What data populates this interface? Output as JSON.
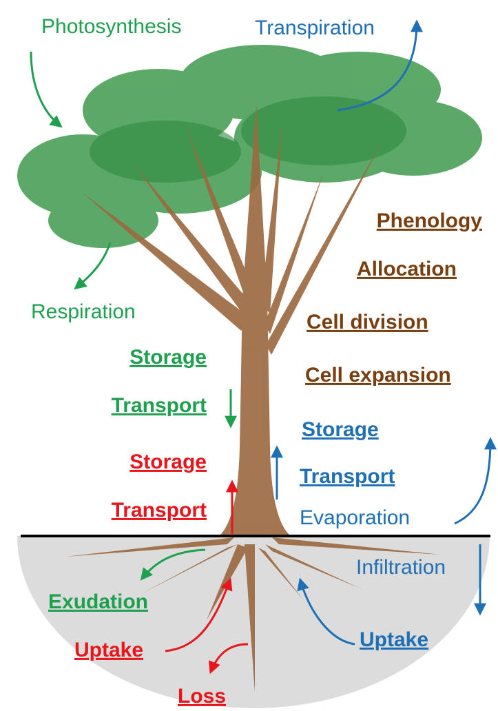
{
  "canopy": {
    "photosynthesis": "Photosynthesis",
    "transpiration": "Transpiration",
    "respiration": "Respiration"
  },
  "growth": {
    "phenology": "Phenology",
    "allocation": "Allocation",
    "cell_division": "Cell division",
    "cell_expansion": "Cell expansion"
  },
  "carbon": {
    "storage": "Storage",
    "transport": "Transport",
    "exudation": "Exudation"
  },
  "nitrogen": {
    "storage": "Storage",
    "transport": "Transport",
    "uptake": "Uptake",
    "loss": "Loss"
  },
  "water": {
    "storage": "Storage",
    "transport": "Transport",
    "evaporation": "Evaporation",
    "infiltration": "Infiltration",
    "uptake": "Uptake"
  }
}
